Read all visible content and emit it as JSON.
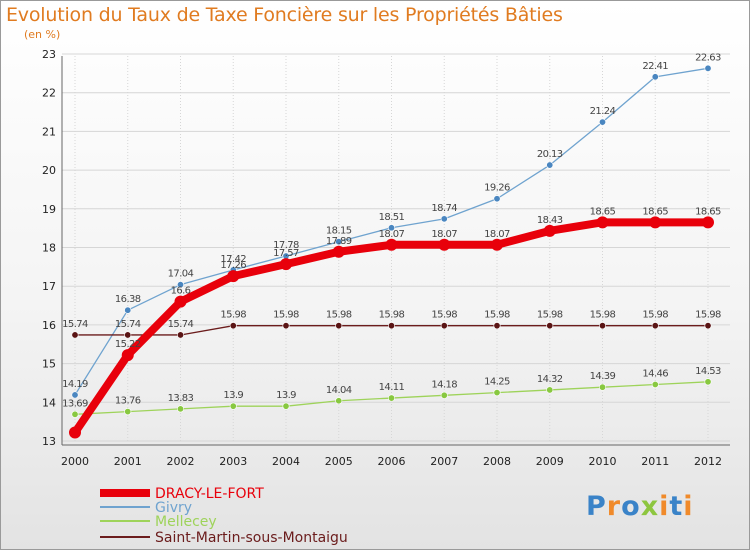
{
  "title": "Evolution du Taux de Taxe Foncière sur les Propriétés Bâties",
  "unit_label": "(en %)",
  "logo": {
    "letters": [
      "P",
      "r",
      "o",
      "x",
      "i",
      "t",
      "i"
    ],
    "colors": [
      "#3a83c8",
      "#f08a2a",
      "#3a83c8",
      "#8dc63f",
      "#f08a2a",
      "#3a83c8",
      "#f08a2a"
    ]
  },
  "chart_data": {
    "type": "line",
    "title": "Evolution du Taux de Taxe Foncière sur les Propriétés Bâties",
    "ylabel": "(en %)",
    "xlabel": "",
    "x": [
      "2000",
      "2001",
      "2002",
      "2003",
      "2004",
      "2005",
      "2006",
      "2007",
      "2008",
      "2009",
      "2010",
      "2011",
      "2012"
    ],
    "ylim": [
      13,
      23
    ],
    "yticks": [
      "13",
      "14",
      "15",
      "16",
      "17",
      "18",
      "19",
      "20",
      "21",
      "22",
      "23"
    ],
    "grid": true,
    "legend_position": "bottom-left",
    "series": [
      {
        "name": "DRACY-LE-FORT",
        "color": "#e8000b",
        "values": [
          13.22,
          15.22,
          16.6,
          17.26,
          17.57,
          17.89,
          18.07,
          18.07,
          18.07,
          18.43,
          18.65,
          18.65,
          18.65
        ],
        "labels": [
          "",
          "15.22",
          "16.6",
          "17.26",
          "17.57",
          "17.89",
          "18.07",
          "18.07",
          "18.07",
          "18.43",
          "18.65",
          "18.65",
          "18.65"
        ]
      },
      {
        "name": "Givry",
        "color": "#6fa3cf",
        "values": [
          14.19,
          16.38,
          17.04,
          17.42,
          17.78,
          18.15,
          18.51,
          18.74,
          19.26,
          20.13,
          21.24,
          22.41,
          22.63
        ],
        "labels": [
          "14.19",
          "16.38",
          "17.04",
          "17.42",
          "17.78",
          "18.15",
          "18.51",
          "18.74",
          "19.26",
          "20.13",
          "21.24",
          "22.41",
          "22.63"
        ]
      },
      {
        "name": "Mellecey",
        "color": "#9ed35a",
        "values": [
          13.69,
          13.76,
          13.83,
          13.9,
          13.9,
          14.04,
          14.11,
          14.18,
          14.25,
          14.32,
          14.39,
          14.46,
          14.53
        ],
        "labels": [
          "13.69",
          "13.76",
          "13.83",
          "13.9",
          "13.9",
          "14.04",
          "14.11",
          "14.18",
          "14.25",
          "14.32",
          "14.39",
          "14.46",
          "14.53"
        ]
      },
      {
        "name": "Saint-Martin-sous-Montaigu",
        "color": "#6b1c1c",
        "values": [
          15.74,
          15.74,
          15.74,
          15.98,
          15.98,
          15.98,
          15.98,
          15.98,
          15.98,
          15.98,
          15.98,
          15.98,
          15.98
        ],
        "labels": [
          "15.74",
          "15.74",
          "15.74",
          "15.98",
          "15.98",
          "15.98",
          "15.98",
          "15.98",
          "15.98",
          "15.98",
          "15.98",
          "15.98",
          "15.98"
        ]
      }
    ]
  }
}
